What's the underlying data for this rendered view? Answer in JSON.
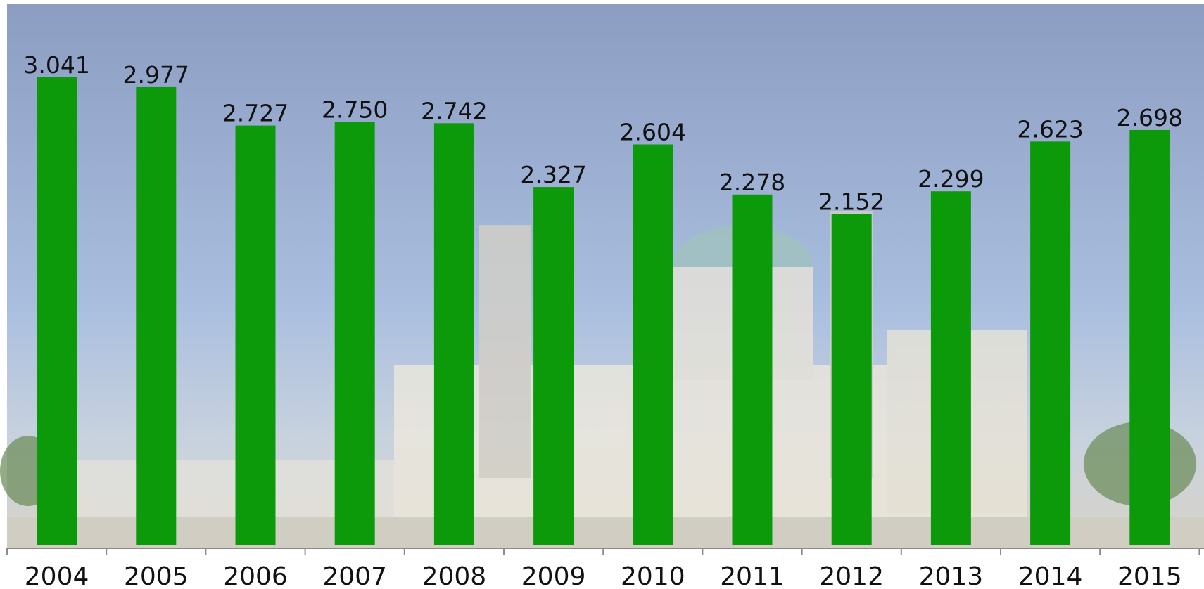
{
  "chart_data": {
    "type": "bar",
    "categories": [
      "2004",
      "2005",
      "2006",
      "2007",
      "2008",
      "2009",
      "2010",
      "2011",
      "2012",
      "2013",
      "2014",
      "2015"
    ],
    "values": [
      3.041,
      2.977,
      2.727,
      2.75,
      2.742,
      2.327,
      2.604,
      2.278,
      2.152,
      2.299,
      2.623,
      2.698
    ],
    "value_labels": [
      "3.041",
      "2.977",
      "2.727",
      "2.750",
      "2.742",
      "2.327",
      "2.604",
      "2.278",
      "2.152",
      "2.299",
      "2.623",
      "2.698"
    ],
    "color": "#0d9a0a"
  }
}
